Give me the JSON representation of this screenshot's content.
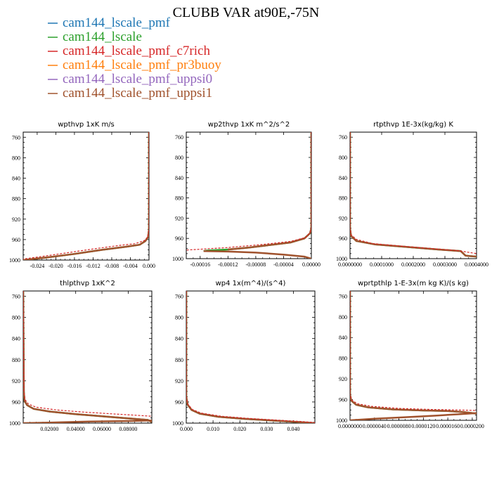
{
  "figure": {
    "title": "CLUBB VAR at90E,-75N"
  },
  "series": [
    {
      "name": "cam144_lscale_pmf",
      "color": "#1f77b4",
      "dashed": false,
      "width": 1.2
    },
    {
      "name": "cam144_lscale",
      "color": "#2ca02c",
      "dashed": false,
      "width": 2.5
    },
    {
      "name": "cam144_lscale_pmf_c7rich",
      "color": "#d62728",
      "dashed": true,
      "width": 1.2
    },
    {
      "name": "cam144_lscale_pmf_pr3buoy",
      "color": "#ff7f0e",
      "dashed": false,
      "width": 1.2
    },
    {
      "name": "cam144_lscale_pmf_uppsi0",
      "color": "#9467bd",
      "dashed": false,
      "width": 1.2
    },
    {
      "name": "cam144_lscale_pmf_uppsi1",
      "color": "#a0522d",
      "dashed": false,
      "width": 2.5
    }
  ],
  "chart_data": [
    {
      "type": "line",
      "title": "wpthvp   1xK m/s",
      "xlim": [
        -0.027,
        0.0
      ],
      "ylim": [
        1000,
        750
      ],
      "xticks": [
        "-0.024",
        "-0.020",
        "-0.016",
        "-0.012",
        "-0.008",
        "-0.004",
        "0.000"
      ],
      "xtick_values": [
        -0.024,
        -0.02,
        -0.016,
        -0.012,
        -0.008,
        -0.004,
        0.0
      ],
      "yticks": [
        760,
        800,
        840,
        880,
        920,
        960,
        1000
      ],
      "lines": [
        {
          "series": 1,
          "x": [
            0.0,
            0.0,
            -0.0002,
            -0.0008,
            -0.002,
            -0.005,
            -0.01,
            -0.016,
            -0.022,
            -0.027
          ],
          "y": [
            750,
            940,
            955,
            963,
            970,
            974,
            980,
            988,
            995,
            1000
          ]
        },
        {
          "series": 5,
          "x": [
            0.0,
            0.0,
            -0.0002,
            -0.0008,
            -0.002,
            -0.005,
            -0.01,
            -0.016,
            -0.022,
            -0.027
          ],
          "y": [
            750,
            940,
            955,
            963,
            970,
            974,
            980,
            988,
            995,
            1000
          ]
        },
        {
          "series": 2,
          "x": [
            0.0,
            0.0,
            -0.0003,
            -0.001,
            -0.003,
            -0.006,
            -0.011,
            -0.017,
            -0.023,
            -0.027
          ],
          "y": [
            750,
            940,
            955,
            962,
            968,
            971,
            977,
            985,
            993,
            998
          ]
        }
      ]
    },
    {
      "type": "line",
      "title": "wp2thvp   1xK m^2/s^2",
      "xlim": [
        -0.00018,
        0.0
      ],
      "ylim": [
        1000,
        750
      ],
      "xticks": [
        "-0.00016",
        "-0.00012",
        "-0.00008",
        "-0.00004",
        "0.00000"
      ],
      "xtick_values": [
        -0.00016,
        -0.00012,
        -8e-05,
        -4e-05,
        0.0
      ],
      "yticks": [
        760,
        800,
        840,
        880,
        920,
        960,
        1000
      ],
      "lines": [
        {
          "series": 1,
          "x": [
            0.0,
            0.0,
            -2e-06,
            -1e-05,
            -3e-05,
            -6e-05,
            -9e-05,
            -0.00012,
            -0.00015,
            -0.000155
          ],
          "y": [
            750,
            940,
            950,
            960,
            968,
            973,
            978,
            982,
            984,
            985
          ]
        },
        {
          "series": 5,
          "x": [
            -0.000155,
            -0.00012,
            -8e-05,
            -4e-05,
            -1e-05,
            0.0
          ],
          "y": [
            985,
            986,
            988,
            992,
            996,
            1000
          ]
        },
        {
          "series": 5,
          "x": [
            0.0,
            0.0,
            -2e-06,
            -1e-05,
            -3e-05,
            -6e-05,
            -9e-05,
            -0.00012
          ],
          "y": [
            750,
            940,
            950,
            960,
            968,
            973,
            978,
            982
          ]
        },
        {
          "series": 2,
          "x": [
            0.0,
            0.0,
            -2e-06,
            -8e-06,
            -3e-05,
            -7e-05,
            -0.00012,
            -0.00018
          ],
          "y": [
            750,
            940,
            948,
            958,
            966,
            972,
            978,
            983
          ]
        }
      ]
    },
    {
      "type": "line",
      "title": "rtpthvp   1E-3x(kg/kg) K",
      "xlim": [
        0.0,
        0.0004
      ],
      "ylim": [
        1000,
        750
      ],
      "xticks": [
        "0.0000000",
        "0.0001000",
        "0.0002000",
        "0.0003000",
        "0.0004000"
      ],
      "xtick_values": [
        0.0,
        0.0001,
        0.0002,
        0.0003,
        0.0004
      ],
      "yticks": [
        760,
        800,
        840,
        880,
        920,
        960,
        1000
      ],
      "lines": [
        {
          "series": 1,
          "x": [
            0.0,
            0.0,
            3e-06,
            2e-05,
            8e-05,
            0.00018,
            0.00028,
            0.00035,
            0.000365,
            0.00038,
            0.0004
          ],
          "y": [
            750,
            940,
            955,
            965,
            972,
            977,
            982,
            985,
            994,
            995,
            996
          ]
        },
        {
          "series": 5,
          "x": [
            0.0,
            0.0,
            3e-06,
            2e-05,
            8e-05,
            0.00018,
            0.00028,
            0.00035,
            0.000365,
            0.00038,
            0.0004
          ],
          "y": [
            750,
            940,
            955,
            965,
            972,
            977,
            982,
            985,
            994,
            995,
            996
          ]
        },
        {
          "series": 2,
          "x": [
            0.0,
            0.0,
            4e-06,
            2e-05,
            7e-05,
            0.00016,
            0.00026,
            0.00034,
            0.0004
          ],
          "y": [
            750,
            940,
            953,
            962,
            970,
            975,
            980,
            984,
            990
          ]
        }
      ]
    },
    {
      "type": "line",
      "title": "thlpthvp   1xK^2",
      "xlim": [
        0.0,
        0.098
      ],
      "ylim": [
        1000,
        750
      ],
      "xticks": [
        "0.02000",
        "0.04000",
        "0.06000",
        "0.08000"
      ],
      "xtick_values": [
        0.02,
        0.04,
        0.06,
        0.08
      ],
      "yticks": [
        760,
        800,
        840,
        880,
        920,
        960,
        1000
      ],
      "lines": [
        {
          "series": 1,
          "x": [
            0.0,
            0.0005,
            0.001,
            0.003,
            0.008,
            0.02,
            0.04,
            0.06,
            0.08,
            0.095,
            0.098
          ],
          "y": [
            750,
            940,
            958,
            966,
            973,
            978,
            983,
            987,
            991,
            994,
            998
          ]
        },
        {
          "series": 5,
          "x": [
            0.0,
            0.0005,
            0.001,
            0.003,
            0.008,
            0.02,
            0.04,
            0.06,
            0.08,
            0.095,
            0.098
          ],
          "y": [
            750,
            940,
            958,
            966,
            973,
            978,
            983,
            987,
            991,
            994,
            998
          ]
        },
        {
          "series": 5,
          "x": [
            0.0,
            0.02,
            0.05,
            0.08,
            0.098
          ],
          "y": [
            1000,
            999,
            997,
            996,
            995
          ]
        },
        {
          "series": 2,
          "x": [
            0.0,
            0.0006,
            0.0015,
            0.004,
            0.01,
            0.025,
            0.045,
            0.065,
            0.085,
            0.098
          ],
          "y": [
            750,
            940,
            956,
            964,
            970,
            975,
            979,
            982,
            985,
            987
          ]
        }
      ]
    },
    {
      "type": "line",
      "title": "wp4   1x(m^4)/(s^4)",
      "xlim": [
        0.0,
        0.048
      ],
      "ylim": [
        1000,
        750
      ],
      "xticks": [
        "0.000",
        "0.010",
        "0.020",
        "0.030",
        "0.040"
      ],
      "xtick_values": [
        0.0,
        0.01,
        0.02,
        0.03,
        0.04
      ],
      "yticks": [
        760,
        800,
        840,
        880,
        920,
        960,
        1000
      ],
      "lines": [
        {
          "series": 1,
          "x": [
            0.0,
            0.0,
            0.0005,
            0.002,
            0.005,
            0.012,
            0.022,
            0.032,
            0.042,
            0.048
          ],
          "y": [
            750,
            950,
            965,
            975,
            982,
            988,
            992,
            995,
            998,
            1000
          ]
        },
        {
          "series": 5,
          "x": [
            0.0,
            0.0,
            0.0005,
            0.002,
            0.005,
            0.012,
            0.022,
            0.032,
            0.042,
            0.048
          ],
          "y": [
            750,
            950,
            965,
            975,
            982,
            988,
            992,
            995,
            998,
            1000
          ]
        },
        {
          "series": 2,
          "x": [
            0.0,
            0.0,
            0.0006,
            0.0022,
            0.0055,
            0.013,
            0.023,
            0.033,
            0.043,
            0.048
          ],
          "y": [
            750,
            950,
            964,
            974,
            981,
            987,
            991,
            994,
            997,
            999
          ]
        }
      ]
    },
    {
      "type": "line",
      "title": "wprtpthlp   1-E-3x(m kg K)/(s kg)",
      "xlim": [
        0.0,
        2.07e-05
      ],
      "ylim": [
        1000,
        750
      ],
      "xticks": [
        "0.0000000",
        "0.0000040",
        "0.0000080",
        "0.0000120",
        "0.0000160",
        "0.0000200"
      ],
      "xtick_values": [
        0.0,
        4e-06,
        8e-06,
        1.2e-05,
        1.6e-05,
        2e-05
      ],
      "yticks": [
        760,
        800,
        840,
        880,
        920,
        960,
        1000
      ],
      "lines": [
        {
          "series": 1,
          "x": [
            0.0,
            0.0,
            2e-07,
            1e-06,
            3e-06,
            7e-06,
            1.2e-05,
            1.6e-05,
            1.85e-05,
            2.07e-05
          ],
          "y": [
            750,
            950,
            962,
            970,
            975,
            979,
            981,
            982,
            984,
            987
          ]
        },
        {
          "series": 5,
          "x": [
            0.0,
            0.0,
            2e-07,
            1e-06,
            3e-06,
            7e-06,
            1.2e-05,
            1.6e-05,
            1.85e-05,
            2.07e-05
          ],
          "y": [
            750,
            950,
            962,
            970,
            975,
            979,
            981,
            982,
            984,
            987
          ]
        },
        {
          "series": 5,
          "x": [
            0.0,
            4e-06,
            9e-06,
            1.4e-05,
            1.8e-05,
            2.07e-05
          ],
          "y": [
            1000,
            997,
            994,
            991,
            988,
            986
          ]
        },
        {
          "series": 2,
          "x": [
            0.0,
            0.0,
            3e-07,
            1.2e-06,
            3.5e-06,
            8e-06,
            1.3e-05,
            1.75e-05,
            2.07e-05
          ],
          "y": [
            750,
            950,
            961,
            968,
            973,
            977,
            979,
            980,
            981
          ]
        }
      ]
    }
  ]
}
